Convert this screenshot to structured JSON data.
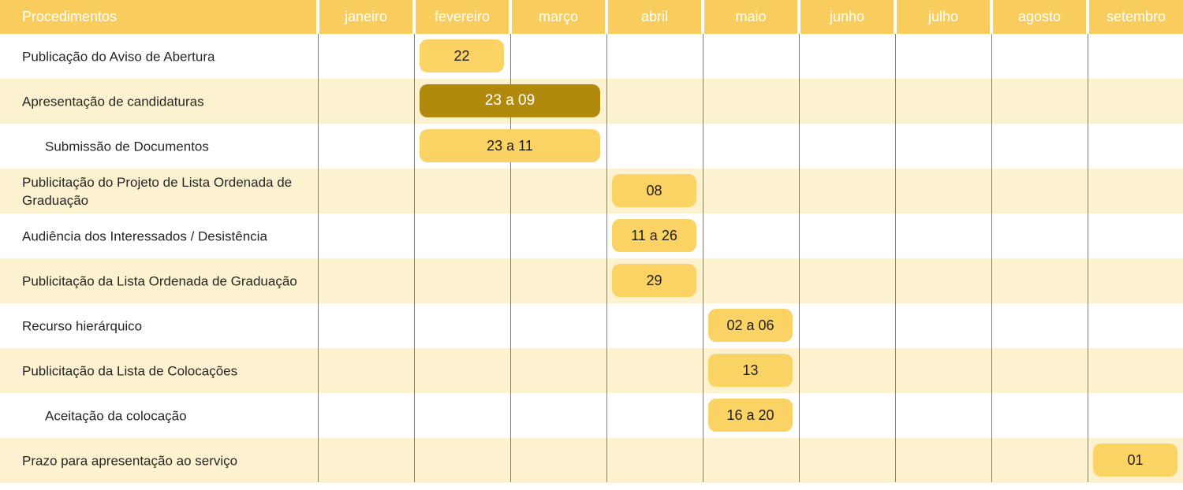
{
  "colors": {
    "header_bg": "#F8CD5E",
    "header_text": "#FFFFFF",
    "bar_light": "#FBD364",
    "bar_dark": "#B1890C",
    "row_alt_bg": "#FDF2CF",
    "row_bg": "#FFFFFF",
    "grid_line": "#7F7F7F",
    "label_text": "#262626"
  },
  "table": {
    "header": {
      "procedures_label": "Procedimentos",
      "months": [
        "janeiro",
        "fevereiro",
        "março",
        "abril",
        "maio",
        "junho",
        "julho",
        "agosto",
        "setembro"
      ]
    },
    "rows": [
      {
        "label": "Publicação do Aviso de Abertura",
        "indent": false,
        "bar": {
          "month_index": 1,
          "span": 1,
          "text": "22",
          "variant": "light"
        }
      },
      {
        "label": "Apresentação de candidaturas",
        "indent": false,
        "bar": {
          "month_index": 1,
          "span": 2,
          "text": "23 a 09",
          "variant": "dark"
        }
      },
      {
        "label": "Submissão de Documentos",
        "indent": true,
        "bar": {
          "month_index": 1,
          "span": 2,
          "text": "23 a 11",
          "variant": "light"
        }
      },
      {
        "label": "Publicitação do Projeto de Lista Ordenada de Graduação",
        "indent": false,
        "bar": {
          "month_index": 3,
          "span": 1,
          "text": "08",
          "variant": "light"
        }
      },
      {
        "label": "Audiência dos Interessados / Desistência",
        "indent": false,
        "bar": {
          "month_index": 3,
          "span": 1,
          "text": "11 a 26",
          "variant": "light"
        }
      },
      {
        "label": "Publicitação da Lista Ordenada de Graduação",
        "indent": false,
        "bar": {
          "month_index": 3,
          "span": 1,
          "text": "29",
          "variant": "light"
        }
      },
      {
        "label": "Recurso hierárquico",
        "indent": false,
        "bar": {
          "month_index": 4,
          "span": 1,
          "text": "02 a 06",
          "variant": "light"
        }
      },
      {
        "label": "Publicitação da Lista de Colocações",
        "indent": false,
        "bar": {
          "month_index": 4,
          "span": 1,
          "text": "13",
          "variant": "light"
        }
      },
      {
        "label": "Aceitação da colocação",
        "indent": true,
        "bar": {
          "month_index": 4,
          "span": 1,
          "text": "16 a 20",
          "variant": "light"
        }
      },
      {
        "label": "Prazo para apresentação ao serviço",
        "indent": false,
        "bar": {
          "month_index": 8,
          "span": 1,
          "text": "01",
          "variant": "light"
        }
      }
    ]
  },
  "chart_data": {
    "type": "table",
    "title": "Procedimentos",
    "columns": [
      "Procedimentos",
      "janeiro",
      "fevereiro",
      "março",
      "abril",
      "maio",
      "junho",
      "julho",
      "agosto",
      "setembro"
    ],
    "rows": [
      {
        "procedimento": "Publicação do Aviso de Abertura",
        "datas": "22",
        "meses": [
          "fevereiro"
        ],
        "destaque": false
      },
      {
        "procedimento": "Apresentação de candidaturas",
        "datas": "23 a 09",
        "meses": [
          "fevereiro",
          "março"
        ],
        "destaque": true
      },
      {
        "procedimento": "Submissão de Documentos",
        "datas": "23 a 11",
        "meses": [
          "fevereiro",
          "março"
        ],
        "destaque": false
      },
      {
        "procedimento": "Publicitação do Projeto de Lista Ordenada de Graduação",
        "datas": "08",
        "meses": [
          "abril"
        ],
        "destaque": false
      },
      {
        "procedimento": "Audiência dos Interessados / Desistência",
        "datas": "11 a 26",
        "meses": [
          "abril"
        ],
        "destaque": false
      },
      {
        "procedimento": "Publicitação da Lista Ordenada de Graduação",
        "datas": "29",
        "meses": [
          "abril"
        ],
        "destaque": false
      },
      {
        "procedimento": "Recurso hierárquico",
        "datas": "02 a 06",
        "meses": [
          "maio"
        ],
        "destaque": false
      },
      {
        "procedimento": "Publicitação da Lista de Colocações",
        "datas": "13",
        "meses": [
          "maio"
        ],
        "destaque": false
      },
      {
        "procedimento": "Aceitação da colocação",
        "datas": "16 a 20",
        "meses": [
          "maio"
        ],
        "destaque": false
      },
      {
        "procedimento": "Prazo para apresentação ao serviço",
        "datas": "01",
        "meses": [
          "setembro"
        ],
        "destaque": false
      }
    ],
    "layout_hints": {
      "grid": "vertical-month-lines",
      "row_striping": [
        "white",
        "cream"
      ],
      "bar_style": "rounded"
    }
  }
}
